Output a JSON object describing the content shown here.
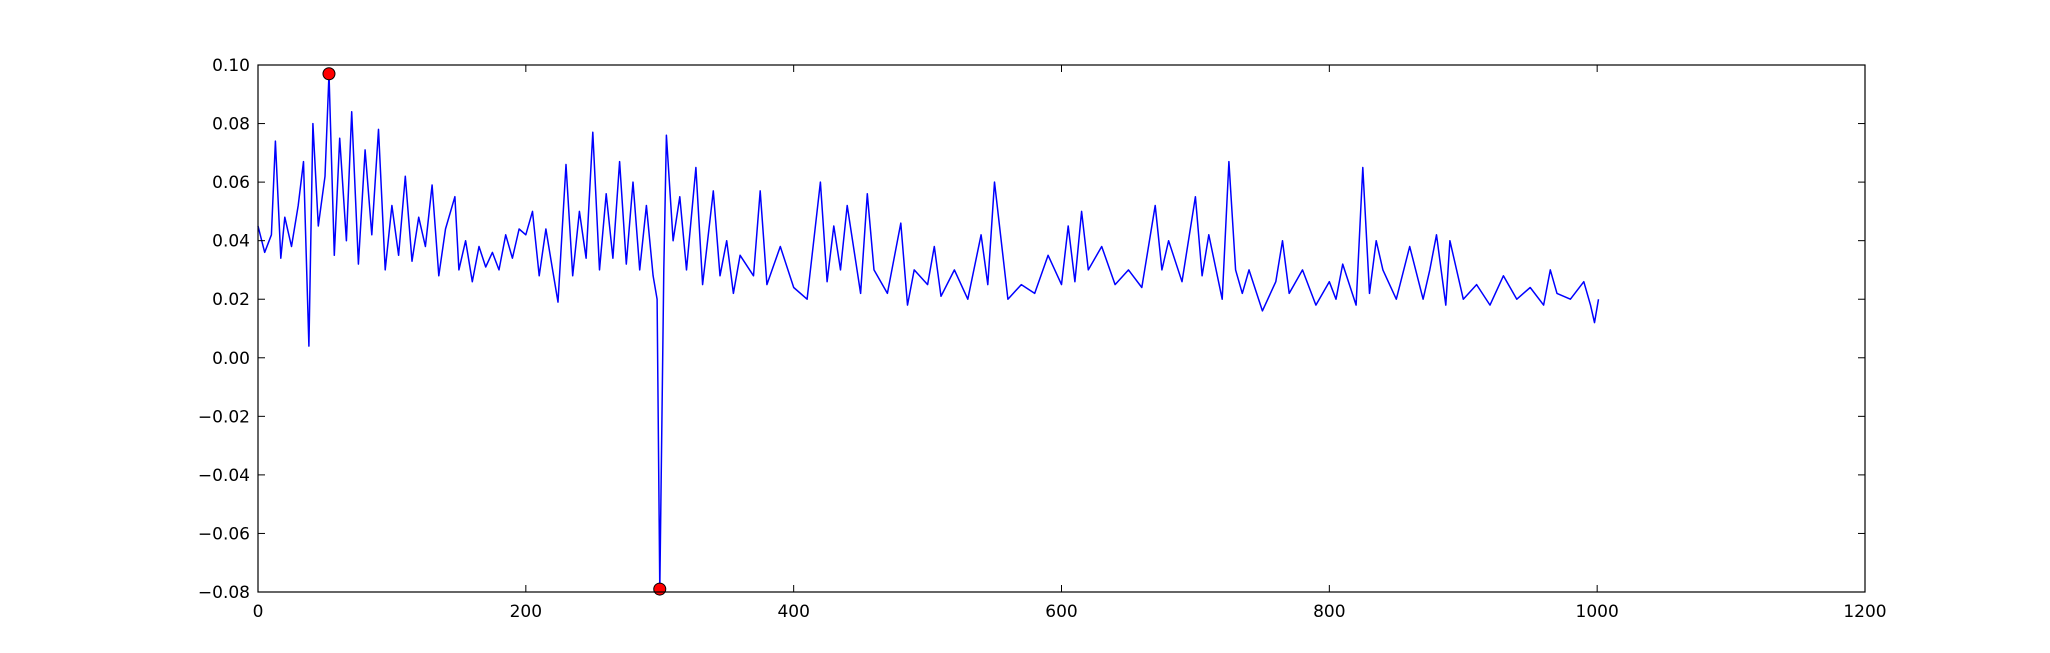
{
  "chart_data": {
    "type": "line",
    "title": "",
    "xlabel": "",
    "ylabel": "",
    "xlim": [
      0,
      1200
    ],
    "ylim": [
      -0.08,
      0.1
    ],
    "grid": false,
    "legend": "none",
    "x_ticks": [
      0,
      200,
      400,
      600,
      800,
      1000,
      1200
    ],
    "x_tick_labels": [
      "0",
      "200",
      "400",
      "600",
      "800",
      "1000",
      "1200"
    ],
    "y_ticks": [
      -0.08,
      -0.06,
      -0.04,
      -0.02,
      0.0,
      0.02,
      0.04,
      0.06,
      0.08,
      0.1
    ],
    "y_tick_labels": [
      "−0.08",
      "−0.06",
      "−0.04",
      "−0.02",
      "0.00",
      "0.02",
      "0.04",
      "0.06",
      "0.08",
      "0.10"
    ],
    "series": [
      {
        "color": "#0000ff",
        "x": [
          0,
          5,
          10,
          13,
          17,
          20,
          25,
          30,
          34,
          38,
          41,
          45,
          50,
          53,
          57,
          61,
          66,
          70,
          75,
          80,
          85,
          90,
          95,
          100,
          105,
          110,
          115,
          120,
          125,
          130,
          135,
          140,
          147,
          150,
          155,
          160,
          165,
          170,
          175,
          180,
          185,
          190,
          195,
          200,
          205,
          210,
          215,
          220,
          224,
          230,
          235,
          240,
          245,
          250,
          255,
          260,
          265,
          270,
          275,
          280,
          285,
          290,
          295,
          298,
          300,
          303,
          305,
          310,
          315,
          320,
          327,
          332,
          340,
          345,
          350,
          355,
          360,
          370,
          375,
          380,
          390,
          400,
          410,
          420,
          425,
          430,
          435,
          440,
          450,
          455,
          460,
          470,
          480,
          485,
          490,
          500,
          505,
          510,
          520,
          530,
          540,
          545,
          550,
          560,
          570,
          580,
          590,
          600,
          605,
          610,
          615,
          620,
          630,
          640,
          650,
          660,
          670,
          675,
          680,
          690,
          700,
          705,
          710,
          720,
          725,
          730,
          735,
          740,
          750,
          760,
          765,
          770,
          780,
          790,
          800,
          805,
          810,
          820,
          825,
          830,
          835,
          840,
          850,
          860,
          870,
          875,
          880,
          887,
          890,
          900,
          910,
          920,
          930,
          940,
          950,
          960,
          965,
          970,
          980,
          990,
          995,
          998,
          1001
        ],
        "y": [
          0.045,
          0.036,
          0.042,
          0.074,
          0.034,
          0.048,
          0.038,
          0.052,
          0.067,
          0.004,
          0.08,
          0.045,
          0.062,
          0.097,
          0.035,
          0.075,
          0.04,
          0.084,
          0.032,
          0.071,
          0.042,
          0.078,
          0.03,
          0.052,
          0.035,
          0.062,
          0.033,
          0.048,
          0.038,
          0.059,
          0.028,
          0.044,
          0.055,
          0.03,
          0.04,
          0.026,
          0.038,
          0.031,
          0.036,
          0.03,
          0.042,
          0.034,
          0.044,
          0.042,
          0.05,
          0.028,
          0.044,
          0.03,
          0.019,
          0.066,
          0.028,
          0.05,
          0.034,
          0.077,
          0.03,
          0.056,
          0.034,
          0.067,
          0.032,
          0.06,
          0.03,
          0.052,
          0.028,
          0.02,
          -0.079,
          0.03,
          0.076,
          0.04,
          0.055,
          0.03,
          0.065,
          0.025,
          0.057,
          0.028,
          0.04,
          0.022,
          0.035,
          0.028,
          0.057,
          0.025,
          0.038,
          0.024,
          0.02,
          0.06,
          0.026,
          0.045,
          0.03,
          0.052,
          0.022,
          0.056,
          0.03,
          0.022,
          0.046,
          0.018,
          0.03,
          0.025,
          0.038,
          0.021,
          0.03,
          0.02,
          0.042,
          0.025,
          0.06,
          0.02,
          0.025,
          0.022,
          0.035,
          0.025,
          0.045,
          0.026,
          0.05,
          0.03,
          0.038,
          0.025,
          0.03,
          0.024,
          0.052,
          0.03,
          0.04,
          0.026,
          0.055,
          0.028,
          0.042,
          0.02,
          0.067,
          0.03,
          0.022,
          0.03,
          0.016,
          0.026,
          0.04,
          0.022,
          0.03,
          0.018,
          0.026,
          0.02,
          0.032,
          0.018,
          0.065,
          0.022,
          0.04,
          0.03,
          0.02,
          0.038,
          0.02,
          0.03,
          0.042,
          0.018,
          0.04,
          0.02,
          0.025,
          0.018,
          0.028,
          0.02,
          0.024,
          0.018,
          0.03,
          0.022,
          0.02,
          0.026,
          0.018,
          0.012,
          0.02
        ]
      }
    ],
    "markers": [
      {
        "x": 53,
        "y": 0.097,
        "color": "#ff0000"
      },
      {
        "x": 300,
        "y": -0.079,
        "color": "#ff0000"
      }
    ]
  }
}
